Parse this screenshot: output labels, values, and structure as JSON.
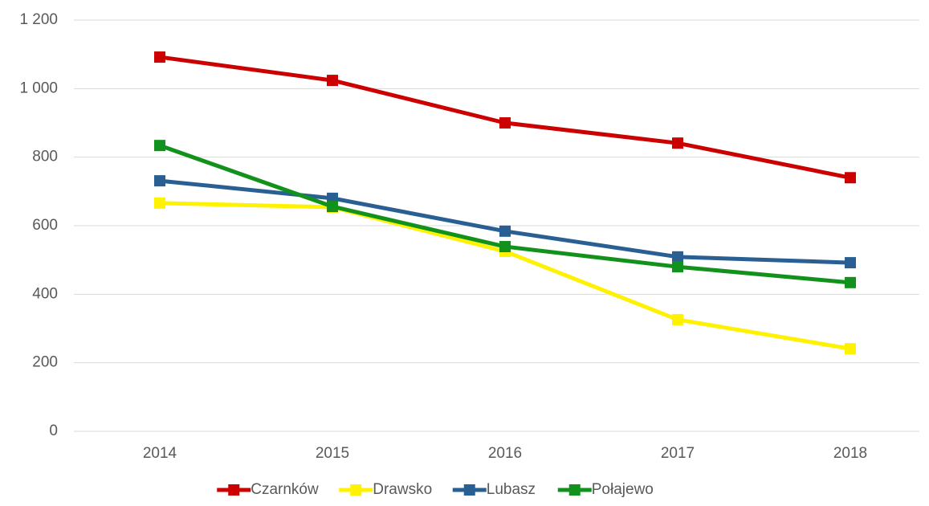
{
  "chart_data": {
    "type": "line",
    "categories": [
      "2014",
      "2015",
      "2016",
      "2017",
      "2018"
    ],
    "series": [
      {
        "name": "Czarnków",
        "color": "#cc0000",
        "values": [
          1092,
          1024,
          900,
          841,
          740
        ]
      },
      {
        "name": "Drawsko",
        "color": "#fff200",
        "values": [
          666,
          654,
          525,
          326,
          241
        ]
      },
      {
        "name": "Lubasz",
        "color": "#2a5f93",
        "values": [
          731,
          680,
          584,
          509,
          492
        ]
      },
      {
        "name": "Połajewo",
        "color": "#12921c",
        "values": [
          834,
          656,
          539,
          480,
          434
        ]
      }
    ],
    "ylim": [
      0,
      1200
    ],
    "yticks": [
      0,
      200,
      400,
      600,
      800,
      {
        "value": 1000,
        "label": "1 000"
      },
      {
        "value": 1200,
        "label": "1 200"
      }
    ],
    "grid": true,
    "legend": "bottom"
  }
}
